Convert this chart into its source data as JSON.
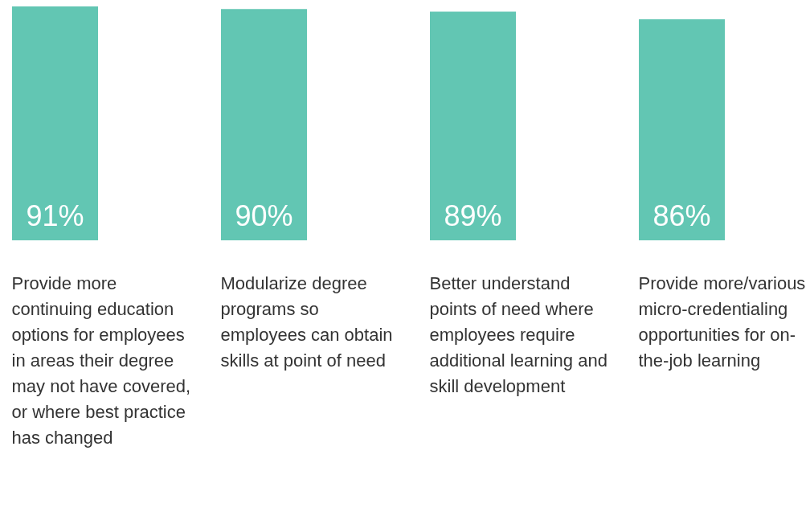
{
  "chart_data": {
    "type": "bar",
    "categories": [
      "Provide more continuing education options for employees in areas their degree may not have covered, or where best practice has changed",
      "Modularize degree programs so employees can obtain skills at point of need",
      "Better understand points of need where employees require additional learning and skill development",
      "Provide more/various micro-credentialing opportunities for on-the-job learning"
    ],
    "values": [
      91,
      90,
      89,
      86
    ],
    "color": "#62c6b3",
    "data_labels": true,
    "value_labels": [
      "91%",
      "90%",
      "89%",
      "86%"
    ],
    "grid": false,
    "legend": false
  }
}
